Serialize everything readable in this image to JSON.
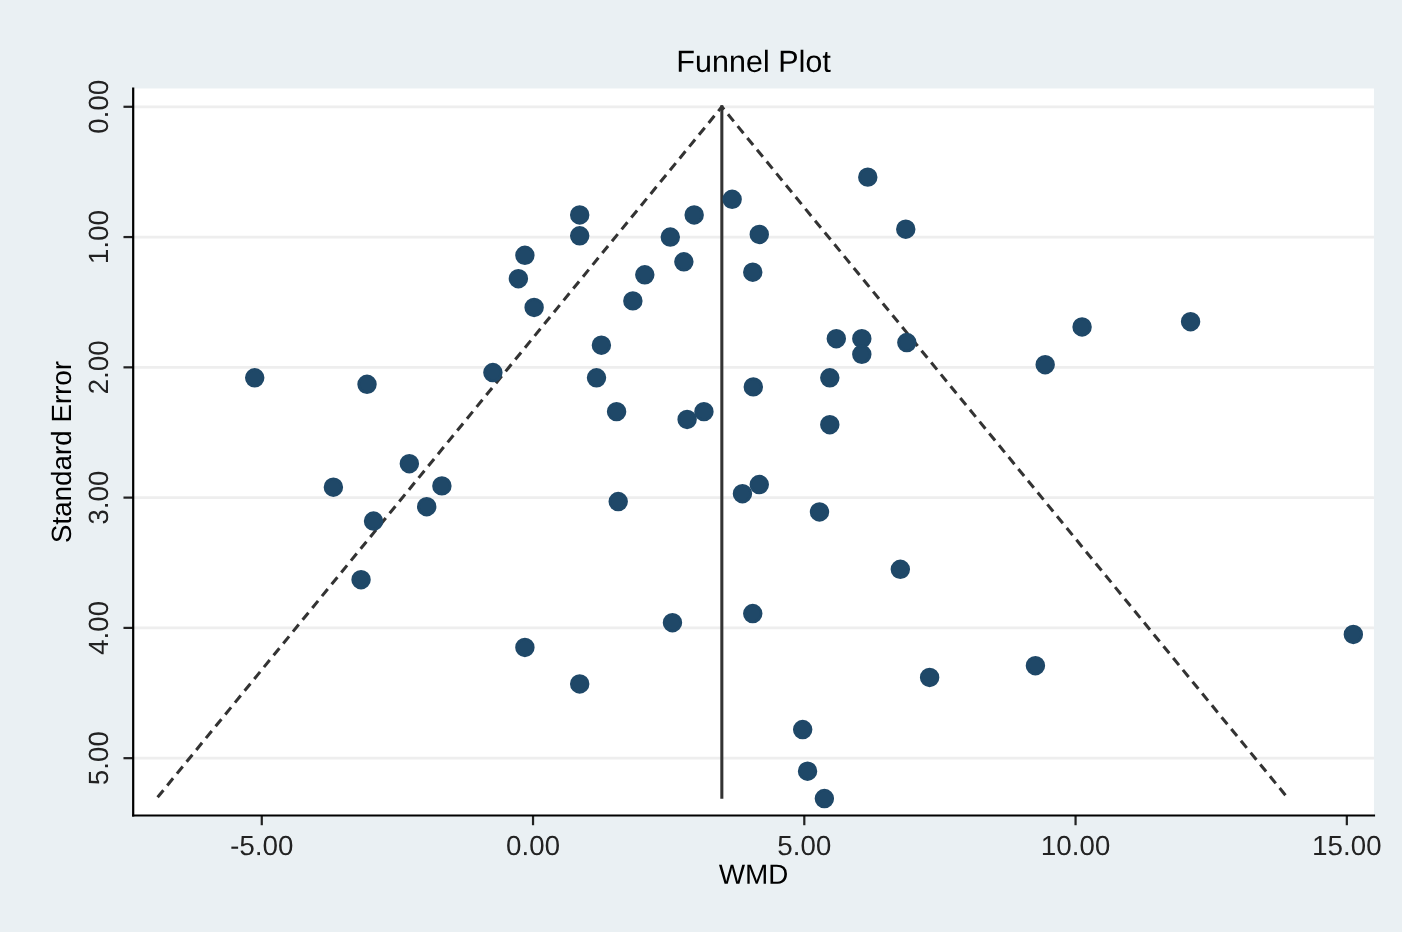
{
  "chart_data": {
    "type": "scatter",
    "title": "Funnel Plot",
    "xlabel": "WMD",
    "ylabel": "Standard Error",
    "xlim": [
      -7.37,
      15.5
    ],
    "ylim": [
      5.44,
      -0.14
    ],
    "xticks": [
      {
        "value": -5,
        "label": "-5.00"
      },
      {
        "value": 0,
        "label": "0.00"
      },
      {
        "value": 5,
        "label": "5.00"
      },
      {
        "value": 10,
        "label": "10.00"
      },
      {
        "value": 15,
        "label": "15.00"
      }
    ],
    "yticks": [
      {
        "value": 0,
        "label": "0.00"
      },
      {
        "value": 1,
        "label": "1.00"
      },
      {
        "value": 2,
        "label": "2.00"
      },
      {
        "value": 3,
        "label": "3.00"
      },
      {
        "value": 4,
        "label": "4.00"
      },
      {
        "value": 5,
        "label": "5.00"
      }
    ],
    "grid": "y",
    "marker": "circle",
    "series": [
      {
        "color": "#1f4868",
        "x": [
          -5.13,
          -3.06,
          -2.28,
          -0.74,
          -0.27,
          -0.15,
          0.02,
          0.86,
          0.86,
          1.26,
          1.17,
          1.54,
          1.84,
          2.06,
          2.53,
          2.97,
          2.78,
          2.84,
          3.15,
          3.67,
          4.17,
          4.05,
          6.17,
          6.87,
          5.59,
          6.06,
          6.06,
          6.89,
          9.44,
          10.12,
          12.12,
          4.06,
          5.47,
          5.47,
          -3.68,
          -1.68,
          -1.96,
          -2.94,
          -3.17,
          1.57,
          -0.15,
          0.86,
          2.57,
          3.86,
          4.17,
          5.28,
          6.77,
          4.05,
          7.31,
          9.26,
          15.12,
          4.97,
          5.06,
          5.37
        ],
        "values": [
          2.08,
          2.13,
          2.74,
          2.04,
          1.32,
          1.14,
          1.54,
          0.83,
          0.99,
          1.83,
          2.08,
          2.34,
          1.49,
          1.29,
          1.0,
          0.83,
          1.19,
          2.4,
          2.34,
          0.71,
          0.98,
          1.27,
          0.54,
          0.94,
          1.78,
          1.78,
          1.9,
          1.81,
          1.98,
          1.69,
          1.65,
          2.15,
          2.08,
          2.44,
          2.92,
          2.91,
          3.07,
          3.18,
          3.63,
          3.03,
          4.15,
          4.43,
          3.96,
          2.97,
          2.9,
          3.11,
          3.55,
          3.89,
          4.38,
          4.29,
          4.05,
          4.78,
          5.1,
          5.31
        ]
      },
      {
        "type": "line",
        "color": "#333333",
        "line_style": "solid",
        "marker": "none",
        "x": [
          3.48,
          3.48
        ],
        "values": [
          0,
          5.3
        ]
      },
      {
        "type": "line",
        "color": "#333333",
        "line_style": "dashed",
        "marker": "none",
        "x": [
          -6.92,
          3.48,
          13.9
        ],
        "values": [
          5.3,
          0,
          5.3
        ]
      }
    ]
  }
}
